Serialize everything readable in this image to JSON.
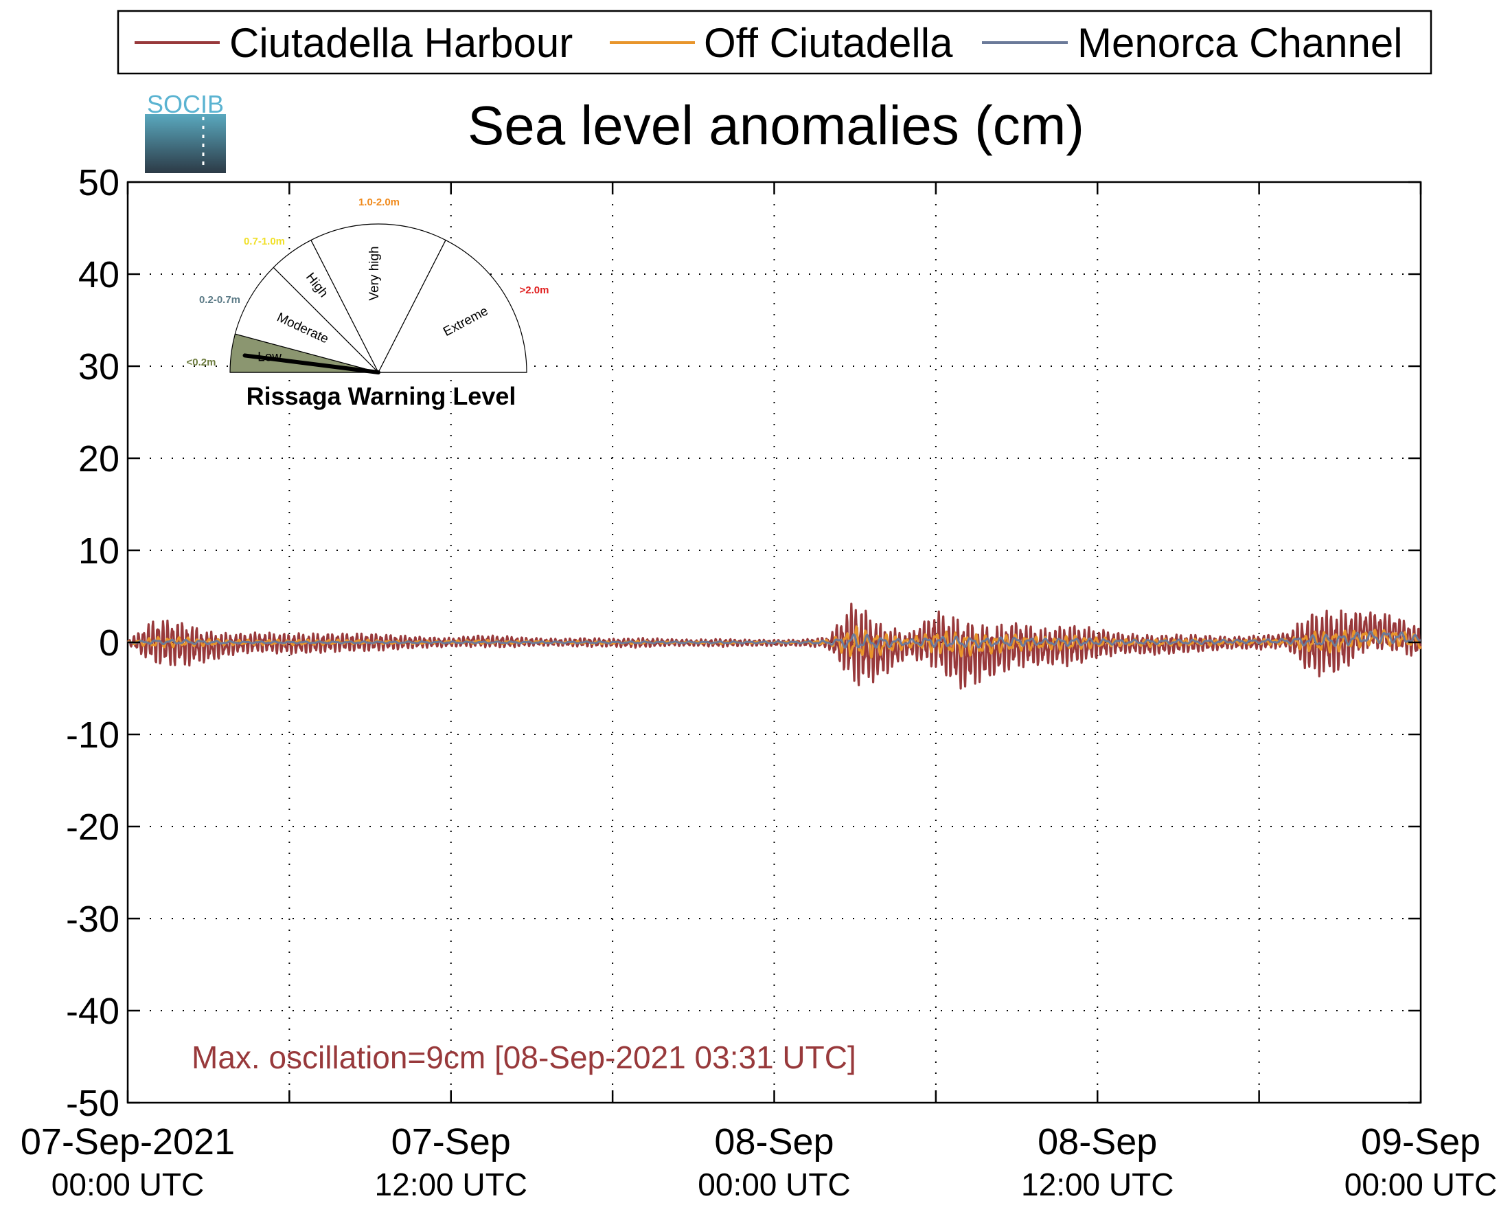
{
  "chart_data": {
    "type": "line",
    "title": "Sea level anomalies (cm)",
    "xlabel": "",
    "ylabel": "",
    "ylim": [
      -50,
      50
    ],
    "yticks": [
      50,
      40,
      30,
      20,
      10,
      0,
      -10,
      -20,
      -30,
      -40,
      -50
    ],
    "xlim": [
      "2021-09-07 00:00",
      "2021-09-09 00:00"
    ],
    "xticks": [
      {
        "value": "2021-09-07 00:00",
        "date": "07-Sep-2021",
        "time": "00:00 UTC"
      },
      {
        "value": "2021-09-07 12:00",
        "date": "07-Sep",
        "time": "12:00 UTC"
      },
      {
        "value": "2021-09-08 00:00",
        "date": "08-Sep",
        "time": "00:00 UTC"
      },
      {
        "value": "2021-09-08 12:00",
        "date": "08-Sep",
        "time": "12:00 UTC"
      },
      {
        "value": "2021-09-09 00:00",
        "date": "09-Sep",
        "time": "00:00 UTC"
      }
    ],
    "grid": true,
    "legend_position": "top",
    "annotation": "Max. oscillation=9cm [08-Sep-2021 03:31 UTC]",
    "x_hours": [
      0,
      1,
      2,
      3,
      4,
      5,
      6,
      7,
      8,
      9,
      10,
      11,
      12,
      13,
      14,
      15,
      16,
      17,
      18,
      19,
      20,
      21,
      22,
      23,
      24,
      25,
      26,
      27,
      28,
      29,
      30,
      31,
      32,
      33,
      34,
      35,
      36,
      37,
      38,
      39,
      40,
      41,
      42,
      43,
      44,
      45,
      46,
      47,
      48
    ],
    "series": [
      {
        "name": "Ciutadella Harbour",
        "color": "#98393b",
        "min": [
          -0.2,
          -2.5,
          -2.7,
          -2.2,
          -1.3,
          -1.1,
          -1.3,
          -1.2,
          -1.0,
          -1.0,
          -0.8,
          -0.6,
          -0.5,
          -0.5,
          -0.6,
          -0.4,
          -0.4,
          -0.5,
          -0.5,
          -0.6,
          -0.4,
          -0.4,
          -0.5,
          -0.4,
          -0.4,
          -0.4,
          -0.6,
          -5.0,
          -4.0,
          -1.5,
          -3.0,
          -5.3,
          -4.0,
          -2.8,
          -2.5,
          -2.6,
          -1.8,
          -1.2,
          -1.4,
          -1.2,
          -1.0,
          -0.7,
          -0.8,
          -0.6,
          -3.8,
          -3.5,
          -0.8,
          -1.0,
          -1.8
        ],
        "max": [
          0.2,
          2.6,
          2.3,
          1.2,
          1.0,
          1.1,
          1.0,
          1.0,
          1.0,
          1.0,
          0.8,
          0.6,
          0.5,
          0.8,
          0.7,
          0.5,
          0.4,
          0.5,
          0.4,
          0.5,
          0.4,
          0.3,
          0.4,
          0.3,
          0.3,
          0.3,
          0.6,
          4.8,
          2.0,
          1.0,
          3.5,
          2.6,
          1.8,
          2.3,
          1.5,
          2.0,
          1.5,
          1.0,
          0.8,
          0.9,
          0.8,
          0.6,
          0.8,
          1.0,
          3.5,
          3.5,
          3.4,
          3.0,
          1.6
        ]
      },
      {
        "name": "Off Ciutadella",
        "color": "#e8952b",
        "min": [
          -0.1,
          -0.6,
          -0.5,
          -0.4,
          -0.3,
          -0.3,
          -0.3,
          -0.3,
          -0.2,
          -0.2,
          -0.2,
          -0.2,
          -0.1,
          -0.2,
          -0.2,
          -0.1,
          -0.1,
          -0.2,
          -0.2,
          -0.2,
          -0.1,
          -0.1,
          -0.2,
          -0.1,
          -0.1,
          -0.1,
          -0.3,
          -2.0,
          -1.5,
          -0.6,
          -1.2,
          -1.6,
          -1.3,
          -1.0,
          -0.8,
          -0.9,
          -0.6,
          -0.4,
          -0.5,
          -0.4,
          -0.4,
          -0.3,
          -0.3,
          -0.3,
          -1.2,
          -1.1,
          -0.4,
          -0.4,
          -0.7
        ],
        "max": [
          0.1,
          0.6,
          0.6,
          0.4,
          0.3,
          0.3,
          0.3,
          0.3,
          0.3,
          0.3,
          0.2,
          0.2,
          0.2,
          0.3,
          0.2,
          0.2,
          0.1,
          0.2,
          0.1,
          0.2,
          0.1,
          0.1,
          0.1,
          0.1,
          0.1,
          0.1,
          0.3,
          1.8,
          1.0,
          0.5,
          1.3,
          1.1,
          0.8,
          0.9,
          0.6,
          0.8,
          0.6,
          0.4,
          0.4,
          0.4,
          0.4,
          0.3,
          0.4,
          0.4,
          1.2,
          1.3,
          1.4,
          1.4,
          0.8
        ]
      },
      {
        "name": "Menorca Channel",
        "color": "#6b7a99",
        "min": [
          0.0,
          -0.2,
          -0.2,
          -0.2,
          -0.1,
          -0.1,
          -0.1,
          -0.1,
          -0.1,
          -0.1,
          -0.1,
          -0.1,
          -0.1,
          -0.1,
          -0.1,
          -0.1,
          -0.1,
          -0.1,
          -0.1,
          -0.1,
          -0.1,
          -0.1,
          -0.1,
          -0.1,
          -0.1,
          -0.1,
          -0.2,
          -0.8,
          -0.6,
          -0.3,
          -0.5,
          -0.6,
          -0.5,
          -0.4,
          -0.3,
          -0.4,
          -0.3,
          -0.2,
          -0.2,
          -0.2,
          -0.2,
          -0.1,
          -0.1,
          -0.1,
          -0.5,
          -0.4,
          -0.1,
          -0.1,
          -0.2
        ],
        "max": [
          0.0,
          0.3,
          0.3,
          0.2,
          0.1,
          0.1,
          0.1,
          0.1,
          0.1,
          0.1,
          0.1,
          0.1,
          0.1,
          0.1,
          0.1,
          0.1,
          0.1,
          0.1,
          0.1,
          0.1,
          0.1,
          0.1,
          0.1,
          0.1,
          0.1,
          0.1,
          0.2,
          1.0,
          0.6,
          0.3,
          0.7,
          0.6,
          0.5,
          0.6,
          0.4,
          0.5,
          0.4,
          0.3,
          0.3,
          0.3,
          0.3,
          0.3,
          0.3,
          0.4,
          0.8,
          0.9,
          1.2,
          1.3,
          0.7
        ]
      }
    ]
  },
  "gauge": {
    "title": "Rissaga Warning Level",
    "value_fraction": 0.04,
    "segments": [
      {
        "label": "Low",
        "range": "<0.2m",
        "range_color": "#6b7a3c",
        "fill": "#8b9670",
        "active": true
      },
      {
        "label": "Moderate",
        "range": "0.2-0.7m",
        "range_color": "#5b7a86",
        "fill": "#ffffff",
        "active": false
      },
      {
        "label": "High",
        "range": "0.7-1.0m",
        "range_color": "#f0e02a",
        "fill": "#ffffff",
        "active": false
      },
      {
        "label": "Very high",
        "range": "1.0-2.0m",
        "range_color": "#f08a1c",
        "fill": "#ffffff",
        "active": false
      },
      {
        "label": "Extreme",
        "range": ">2.0m",
        "range_color": "#e01e1e",
        "fill": "#ffffff",
        "active": false
      }
    ]
  },
  "logo": {
    "text": "SOCIB",
    "color": "#5ab3d1"
  }
}
